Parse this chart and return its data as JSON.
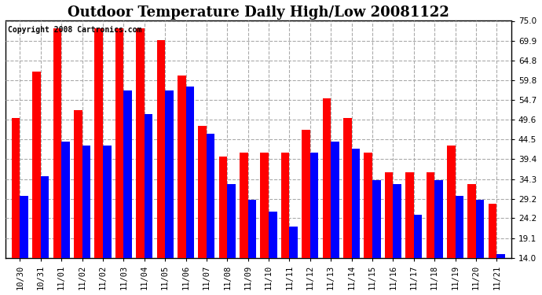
{
  "title": "Outdoor Temperature Daily High/Low 20081122",
  "copyright": "Copyright 2008 Cartronics.com",
  "xlabels": [
    "10/30",
    "10/31",
    "11/01",
    "11/02",
    "11/02",
    "11/03",
    "11/04",
    "11/05",
    "11/06",
    "11/07",
    "11/08",
    "11/09",
    "11/10",
    "11/11",
    "11/12",
    "11/13",
    "11/14",
    "11/15",
    "11/16",
    "11/17",
    "11/18",
    "11/19",
    "11/20",
    "11/21"
  ],
  "highs": [
    50.0,
    62.0,
    73.0,
    52.0,
    73.0,
    73.0,
    73.0,
    70.0,
    61.0,
    48.0,
    40.0,
    41.0,
    41.0,
    41.0,
    47.0,
    55.0,
    50.0,
    41.0,
    36.0,
    36.0,
    36.0,
    43.0,
    33.0,
    28.0
  ],
  "lows": [
    30.0,
    35.0,
    44.0,
    43.0,
    43.0,
    57.0,
    51.0,
    57.0,
    58.0,
    46.0,
    33.0,
    29.0,
    26.0,
    22.0,
    41.0,
    44.0,
    42.0,
    34.0,
    33.0,
    25.0,
    34.0,
    30.0,
    29.0,
    15.0
  ],
  "high_color": "#ff0000",
  "low_color": "#0000ff",
  "bg_color": "#ffffff",
  "plot_bg": "#f0f0f0",
  "ylim_min": 14.0,
  "ylim_max": 75.0,
  "yticks": [
    75.0,
    69.9,
    64.8,
    59.8,
    54.7,
    49.6,
    44.5,
    39.4,
    34.3,
    29.2,
    24.2,
    19.1,
    14.0
  ],
  "bar_width": 0.4,
  "title_fontsize": 13,
  "tick_fontsize": 7.5,
  "copyright_fontsize": 7
}
